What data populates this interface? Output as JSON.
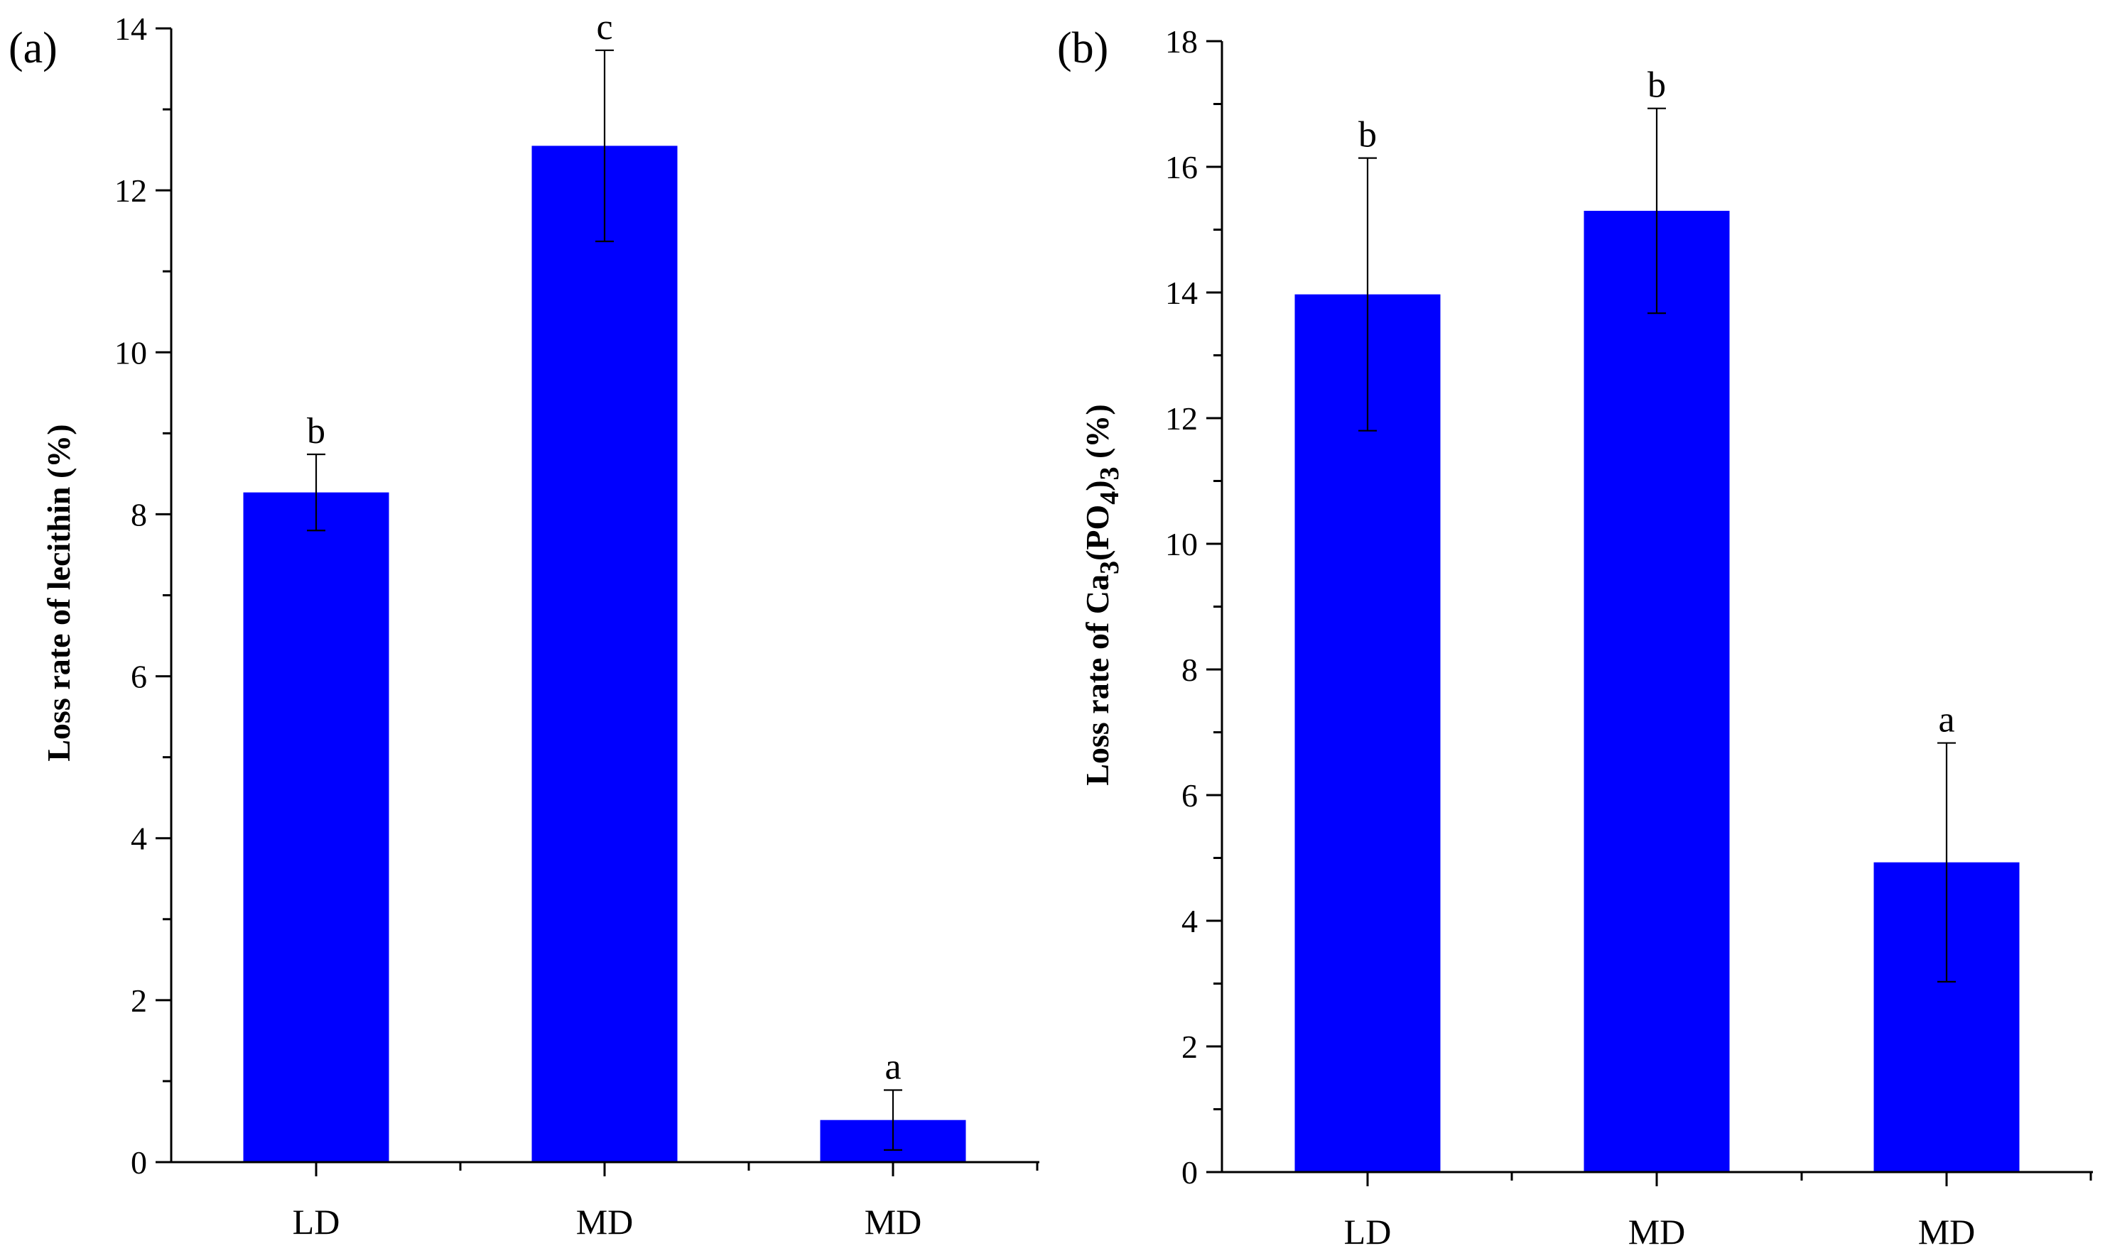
{
  "chart_data": [
    {
      "type": "bar",
      "panel_label": "(a)",
      "categories": [
        "LD",
        "MD",
        "MD"
      ],
      "values": [
        8.27,
        12.55,
        0.52
      ],
      "errors": [
        0.47,
        1.18,
        0.37
      ],
      "significance": [
        "b",
        "c",
        "a"
      ],
      "ylabel": "Loss rate of lecithin (%)",
      "ylim": [
        0,
        14
      ],
      "yticks": [
        0,
        2,
        4,
        6,
        8,
        10,
        12,
        14
      ],
      "bar_color": "#0000ff"
    },
    {
      "type": "bar",
      "panel_label": "(b)",
      "categories": [
        "LD",
        "MD",
        "MD"
      ],
      "values": [
        13.97,
        15.3,
        4.93
      ],
      "errors": [
        2.17,
        1.63,
        1.9
      ],
      "significance": [
        "b",
        "b",
        "a"
      ],
      "ylabel_parts": {
        "prefix": "Loss rate of Ca",
        "sub1": "3",
        "mid": "(PO",
        "sub2": "4",
        "close": ")",
        "sub3": "3",
        "suffix": " (%)"
      },
      "ylim": [
        0,
        18
      ],
      "yticks": [
        0,
        2,
        4,
        6,
        8,
        10,
        12,
        14,
        16,
        18
      ],
      "bar_color": "#0000ff"
    }
  ]
}
